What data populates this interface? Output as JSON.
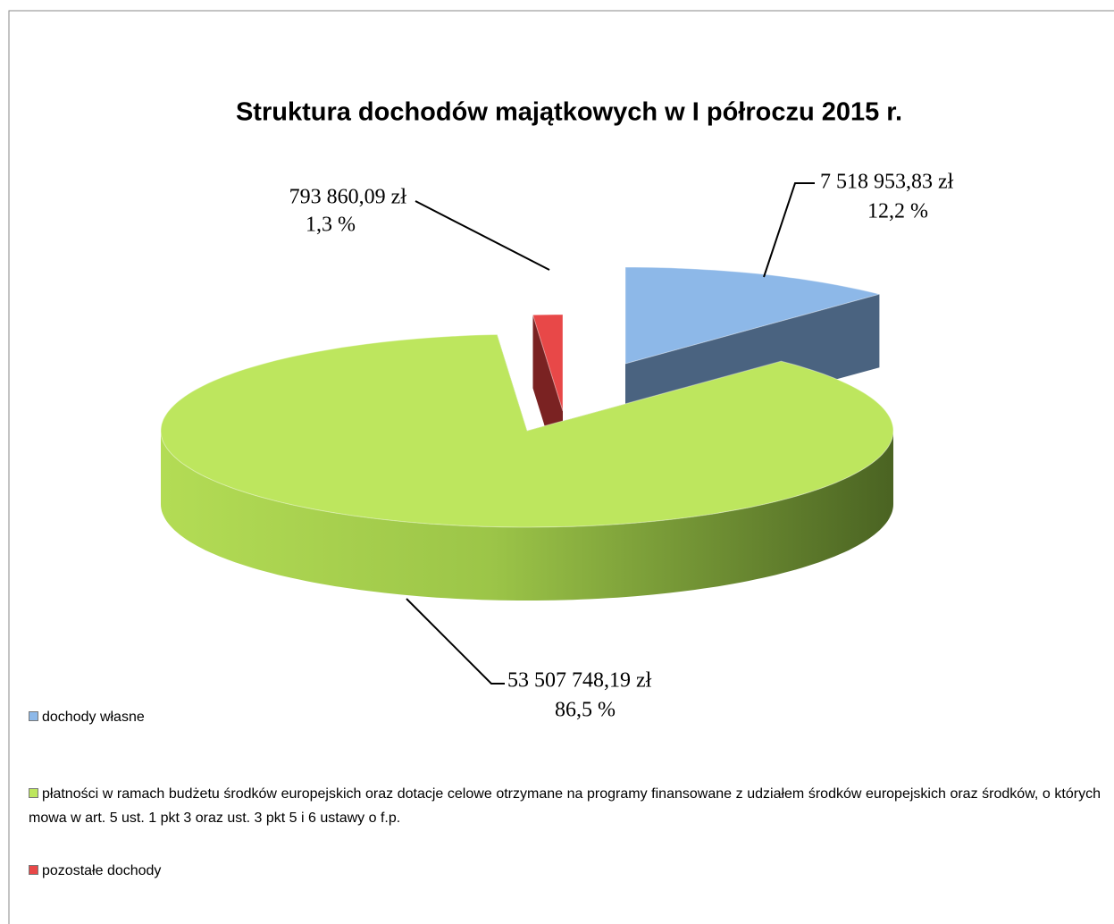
{
  "chart_data": {
    "type": "pie3d",
    "title": "Struktura dochodów majątkowych w  I półroczu 2015 r.",
    "categories": [
      "dochody  własne",
      "płatności  w  ramach  budżetu  środków  europejskich oraz  dotacje  celowe  otrzymane  na  programy  finansowane z  udziałem  środków  europejskich  oraz  środków,  o  których mowa  w  art. 5  ust. 1  pkt  3  oraz  ust.  3  pkt  5  i  6  ustawy  o f.p.",
      "pozostałe  dochody"
    ],
    "values": [
      12.2,
      86.5,
      1.3
    ],
    "value_labels": [
      "12,2 %",
      "86,5 %",
      "1,3 %"
    ],
    "amounts": [
      7518953.83,
      53507748.19,
      793860.09
    ],
    "amount_labels": [
      "7 518 953,83 zł",
      "53 507 748,19 zł",
      "793 860,09 zł"
    ],
    "colors": [
      "#8db8e8",
      "#bde65e",
      "#e84848"
    ],
    "side_colors": [
      "#4a6380",
      "#5a7a24",
      "#7a2222"
    ]
  }
}
